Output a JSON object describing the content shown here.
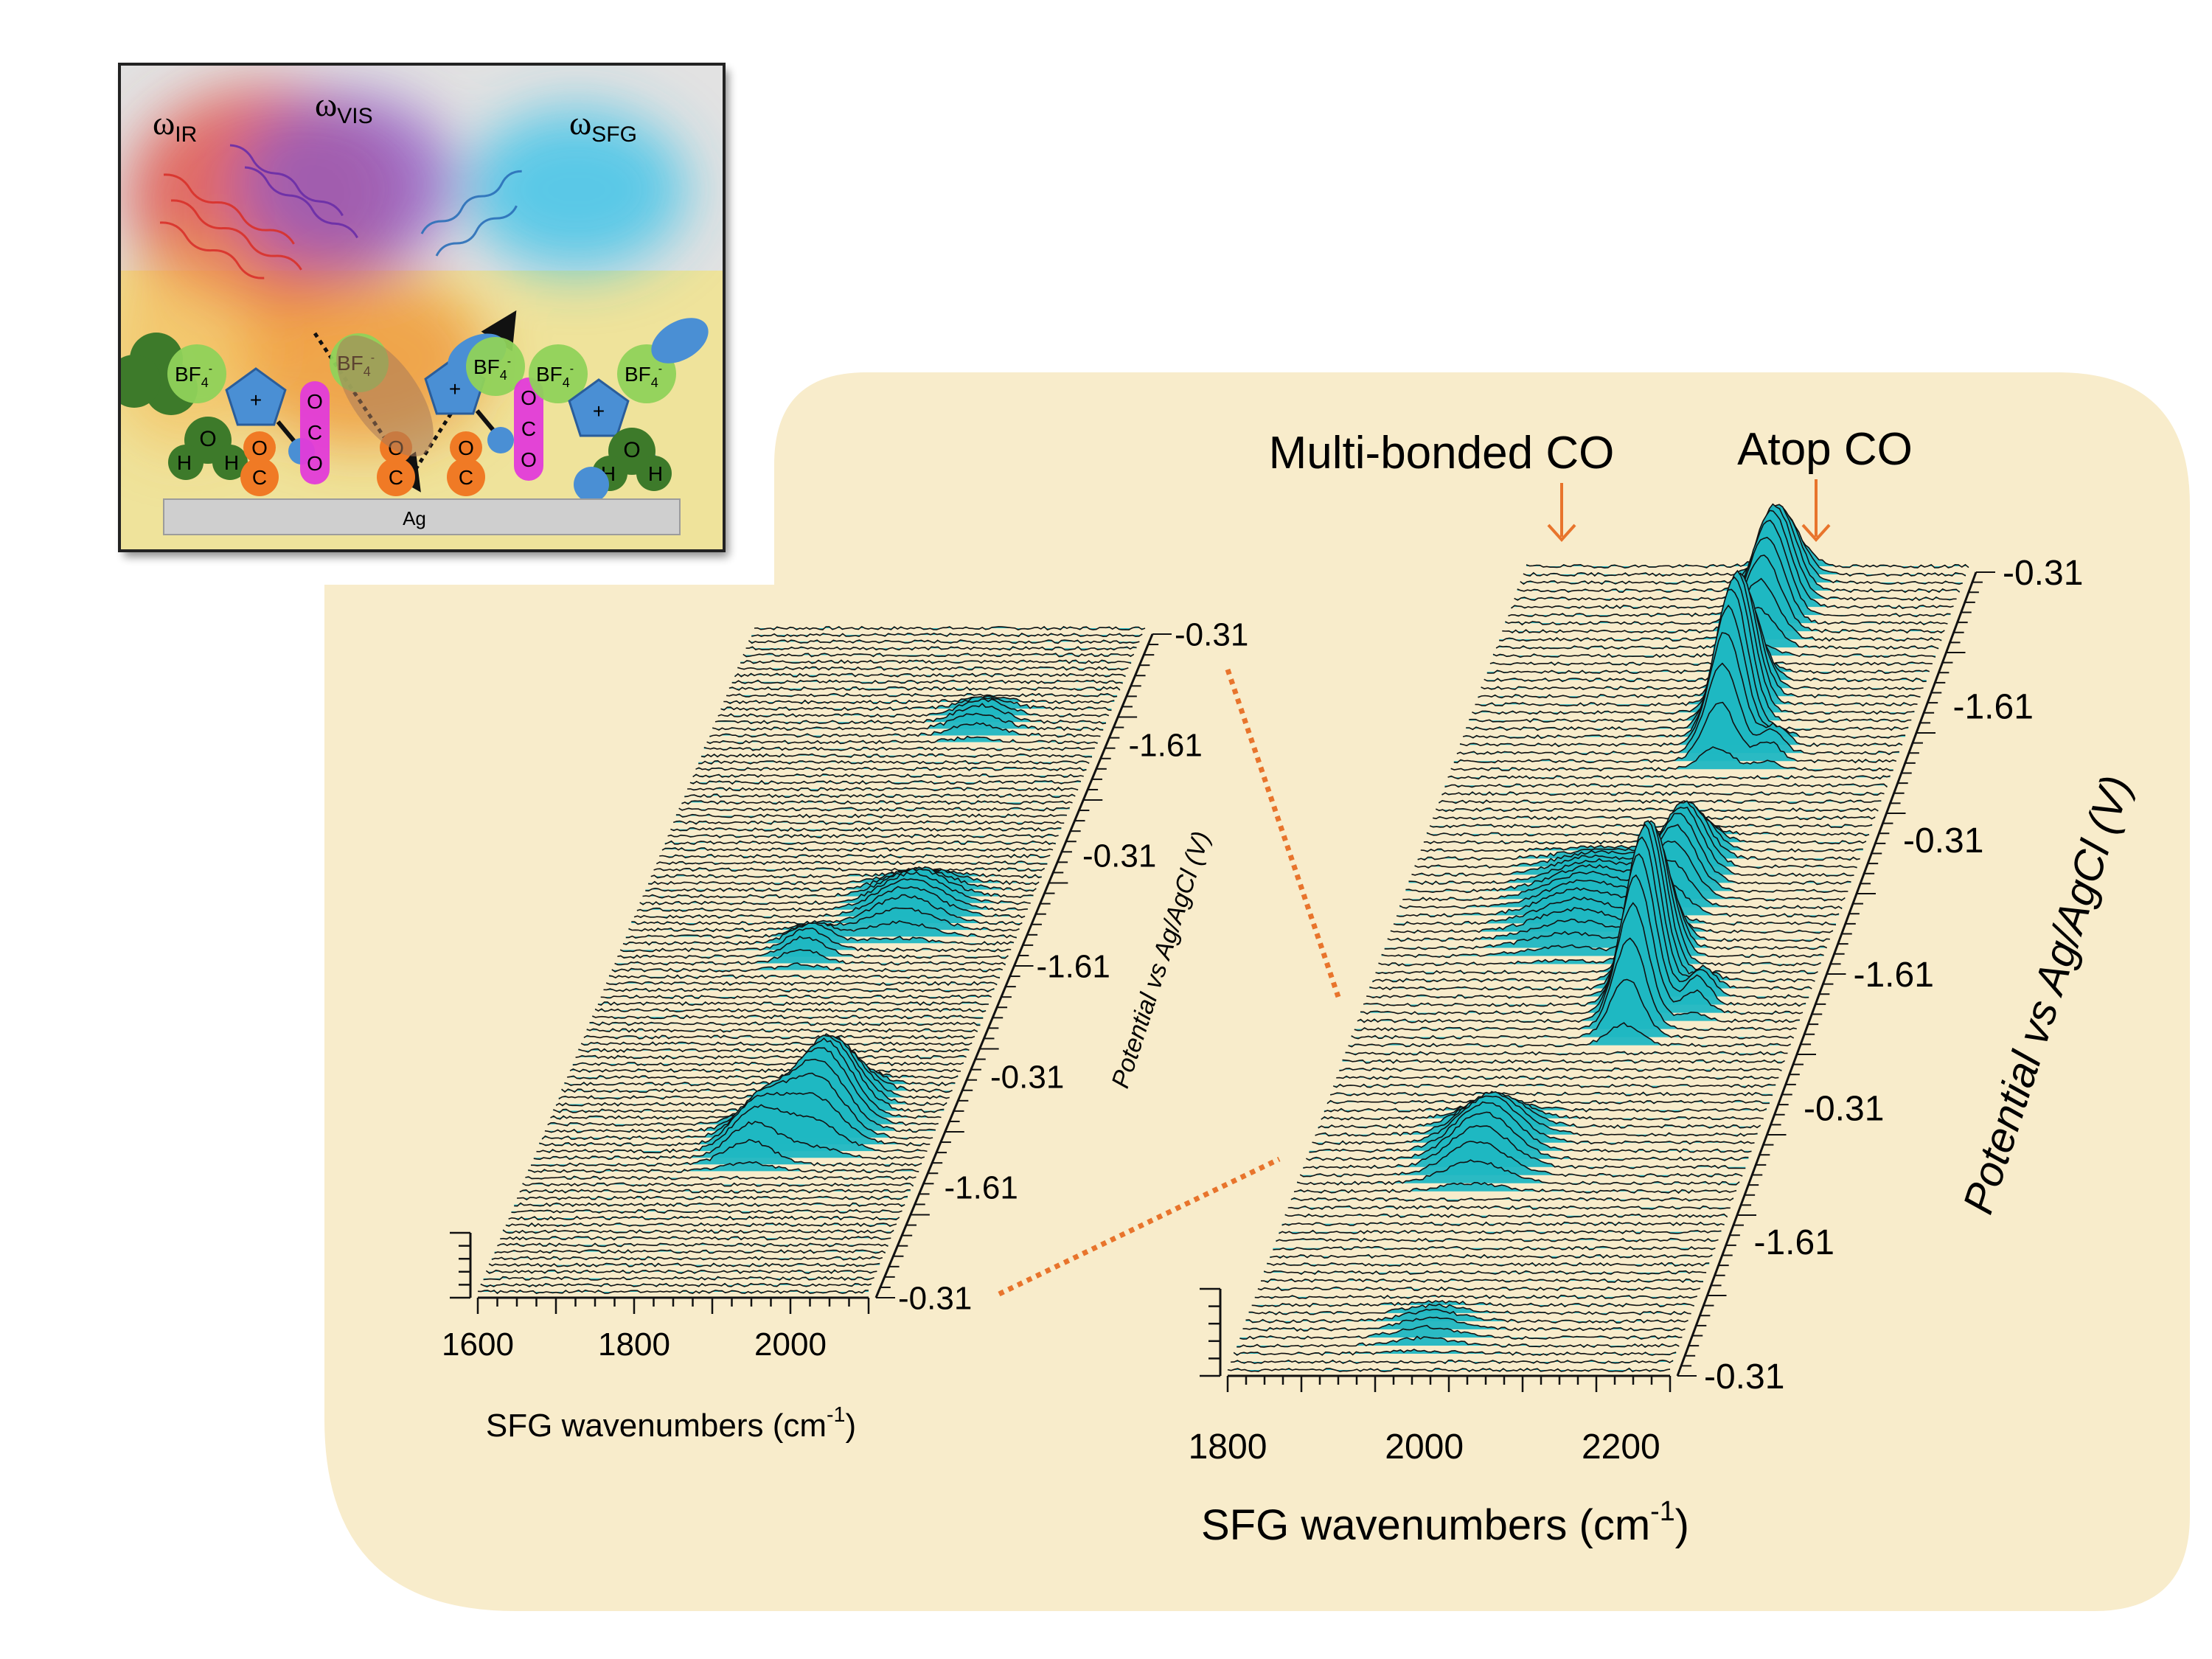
{
  "colors": {
    "panel_bg": "#f8eccb",
    "spectrum_fill": "#1fb7c2",
    "trace": "#111111",
    "arrow": "#e8742c",
    "dotted_link": "#e8742c",
    "inset_bg": "#e2e2e2"
  },
  "inset": {
    "labels": {
      "omega_ir": "ω",
      "ir_sub": "IR",
      "omega_vis": "ω",
      "vis_sub": "VIS",
      "omega_sfg": "ω",
      "sfg_sub": "SFG"
    },
    "electrode_label": "Ag",
    "ion": {
      "text": "BF",
      "sub": "4",
      "sup": "-"
    },
    "cation_sign": "+",
    "water": {
      "O": "O",
      "H": "H"
    },
    "co2": {
      "O": "O",
      "C": "C"
    },
    "formate": {
      "C": "C",
      "O": "O",
      "H": "H"
    }
  },
  "annotations": {
    "multi_bonded": "Multi-bonded CO",
    "atop": "Atop CO"
  },
  "chart_data": [
    {
      "type": "area",
      "panel": "left",
      "x_ticks": [
        "1600",
        "1800",
        "2000"
      ],
      "xlabel": "SFG wavenumbers (cm",
      "xlabel_sup": "-1",
      "xlabel_close": ")",
      "xlim": [
        1600,
        2100
      ],
      "ylabel": "Potential vs Ag/AgCl (V)",
      "y_ticks": [
        "-0.31",
        "-1.61",
        "-0.31",
        "-1.61",
        "-0.31",
        "-1.61",
        "-0.31"
      ],
      "n_spectra": 100,
      "peaks": [
        {
          "center": 1950,
          "width": 35,
          "index_range": [
            20,
            32
          ],
          "max_height": 0.55
        },
        {
          "center": 1880,
          "width": 30,
          "index_range": [
            18,
            26
          ],
          "max_height": 0.3
        },
        {
          "center": 1950,
          "width": 40,
          "index_range": [
            52,
            62
          ],
          "max_height": 0.22
        },
        {
          "center": 1840,
          "width": 25,
          "index_range": [
            48,
            54
          ],
          "max_height": 0.15
        },
        {
          "center": 1940,
          "width": 30,
          "index_range": [
            82,
            88
          ],
          "max_height": 0.12
        }
      ]
    },
    {
      "type": "area",
      "panel": "right",
      "x_ticks": [
        "1800",
        "2000",
        "2200"
      ],
      "xlabel": "SFG wavenumbers (cm",
      "xlabel_sup": "-1",
      "xlabel_close": ")",
      "xlim": [
        1800,
        2250
      ],
      "ylabel": "Potential vs Ag/AgCl (V)",
      "y_ticks": [
        "-0.31",
        "-1.61",
        "-0.31",
        "-1.61",
        "-0.31",
        "-1.61",
        "-0.31"
      ],
      "n_spectra": 100,
      "peaks": [
        {
          "center": 2080,
          "width": 16,
          "index_range": [
            40,
            54
          ],
          "max_height": 0.85
        },
        {
          "center": 2075,
          "width": 20,
          "index_range": [
            55,
            66
          ],
          "max_height": 0.35
        },
        {
          "center": 2070,
          "width": 16,
          "index_range": [
            74,
            86
          ],
          "max_height": 0.75
        },
        {
          "center": 2065,
          "width": 18,
          "index_range": [
            88,
            100
          ],
          "max_height": 0.5
        },
        {
          "center": 2140,
          "width": 12,
          "index_range": [
            43,
            48
          ],
          "max_height": 0.15
        },
        {
          "center": 2120,
          "width": 12,
          "index_range": [
            74,
            78
          ],
          "max_height": 0.12
        },
        {
          "center": 1980,
          "width": 30,
          "index_range": [
            22,
            32
          ],
          "max_height": 0.25
        },
        {
          "center": 1990,
          "width": 40,
          "index_range": [
            50,
            64
          ],
          "max_height": 0.14
        },
        {
          "center": 1990,
          "width": 30,
          "index_range": [
            2,
            8
          ],
          "max_height": 0.06
        }
      ]
    }
  ]
}
